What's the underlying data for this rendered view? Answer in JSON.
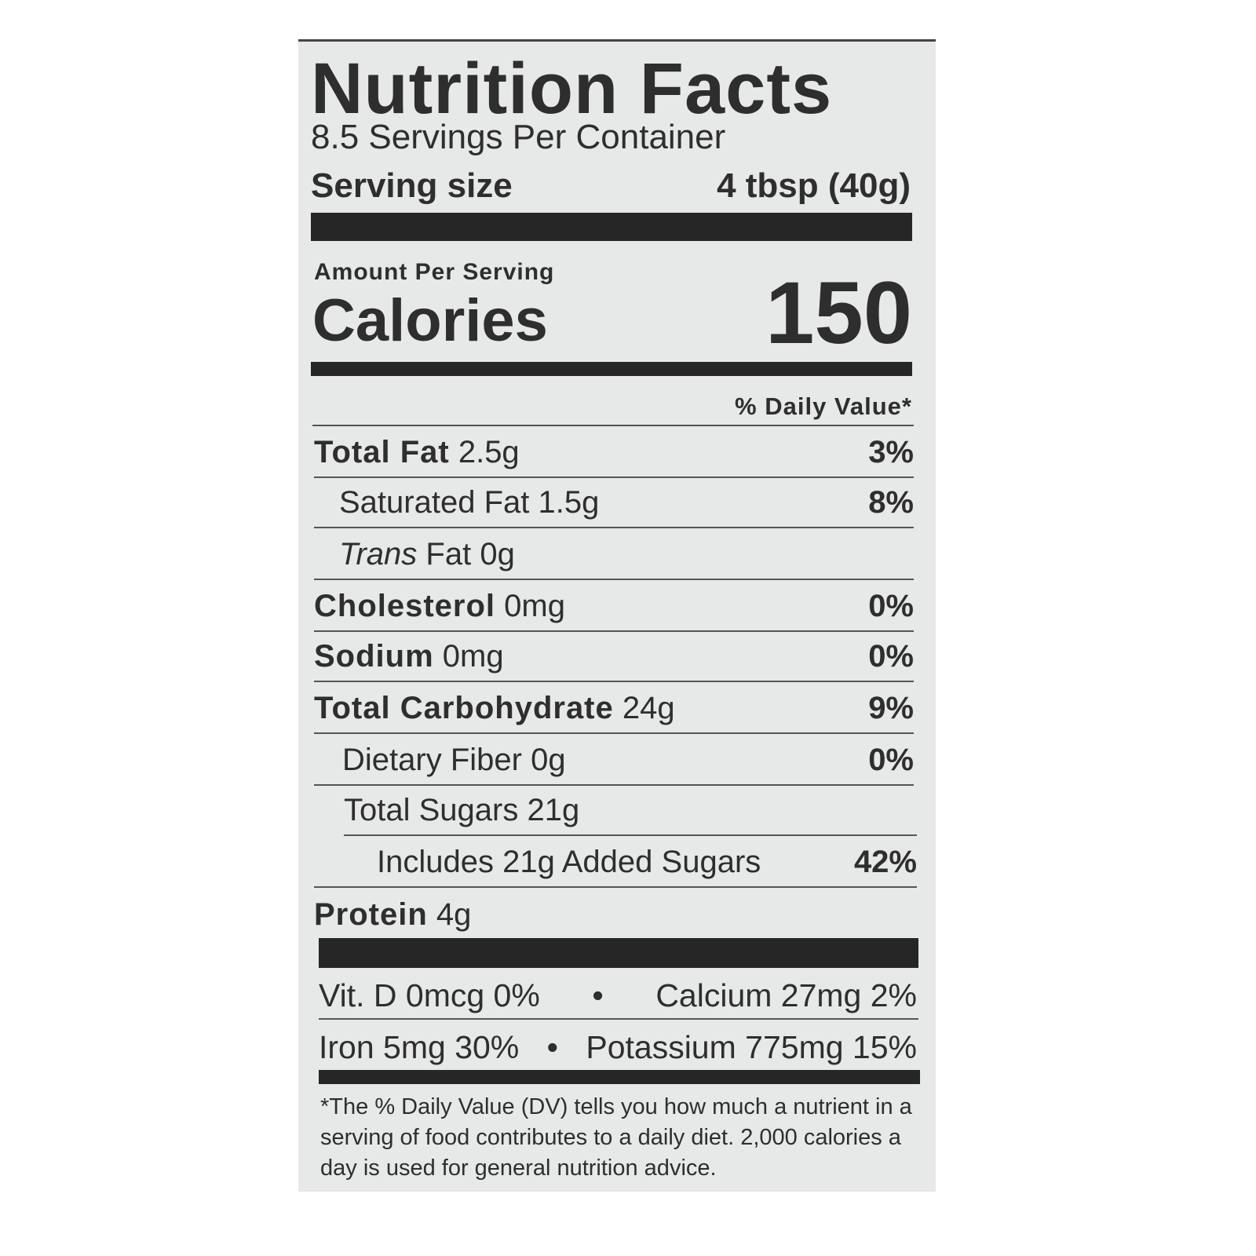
{
  "label": {
    "title": "Nutrition Facts",
    "servings": "8.5 Servings Per Container",
    "serving_size_label": "Serving size",
    "serving_size_value": "4 tbsp (40g)",
    "amount_per_serving": "Amount Per Serving",
    "calories_label": "Calories",
    "calories_value": "150",
    "dv_header": "% Daily Value*",
    "rows": [
      {
        "name": "Total Fat",
        "amount": "2.5g",
        "dv": "3%"
      },
      {
        "name": "Saturated Fat",
        "amount": "1.5g",
        "dv": "8%"
      },
      {
        "name": "Trans",
        "name2": "Fat",
        "amount": "0g",
        "dv": ""
      },
      {
        "name": "Cholesterol",
        "amount": "0mg",
        "dv": "0%"
      },
      {
        "name": "Sodium",
        "amount": "0mg",
        "dv": "0%"
      },
      {
        "name": "Total Carbohydrate",
        "amount": "24g",
        "dv": "9%"
      },
      {
        "name": "Dietary Fiber",
        "amount": "0g",
        "dv": "0%"
      },
      {
        "name": "Total Sugars",
        "amount": "21g",
        "dv": ""
      },
      {
        "name": "Includes 21g Added Sugars",
        "amount": "",
        "dv": "42%"
      },
      {
        "name": "Protein",
        "amount": "4g",
        "dv": ""
      }
    ],
    "vitamins_line1": [
      "Vit. D 0mcg 0%",
      "•",
      "Calcium 27mg 2%"
    ],
    "vitamins_line2": [
      "Iron 5mg 30%",
      "•",
      "Potassium 775mg 15%"
    ],
    "footnote": "*The % Daily Value (DV) tells you how much a nutrient in a serving of food contributes to a daily diet. 2,000 calories a day is used for general nutrition advice."
  }
}
